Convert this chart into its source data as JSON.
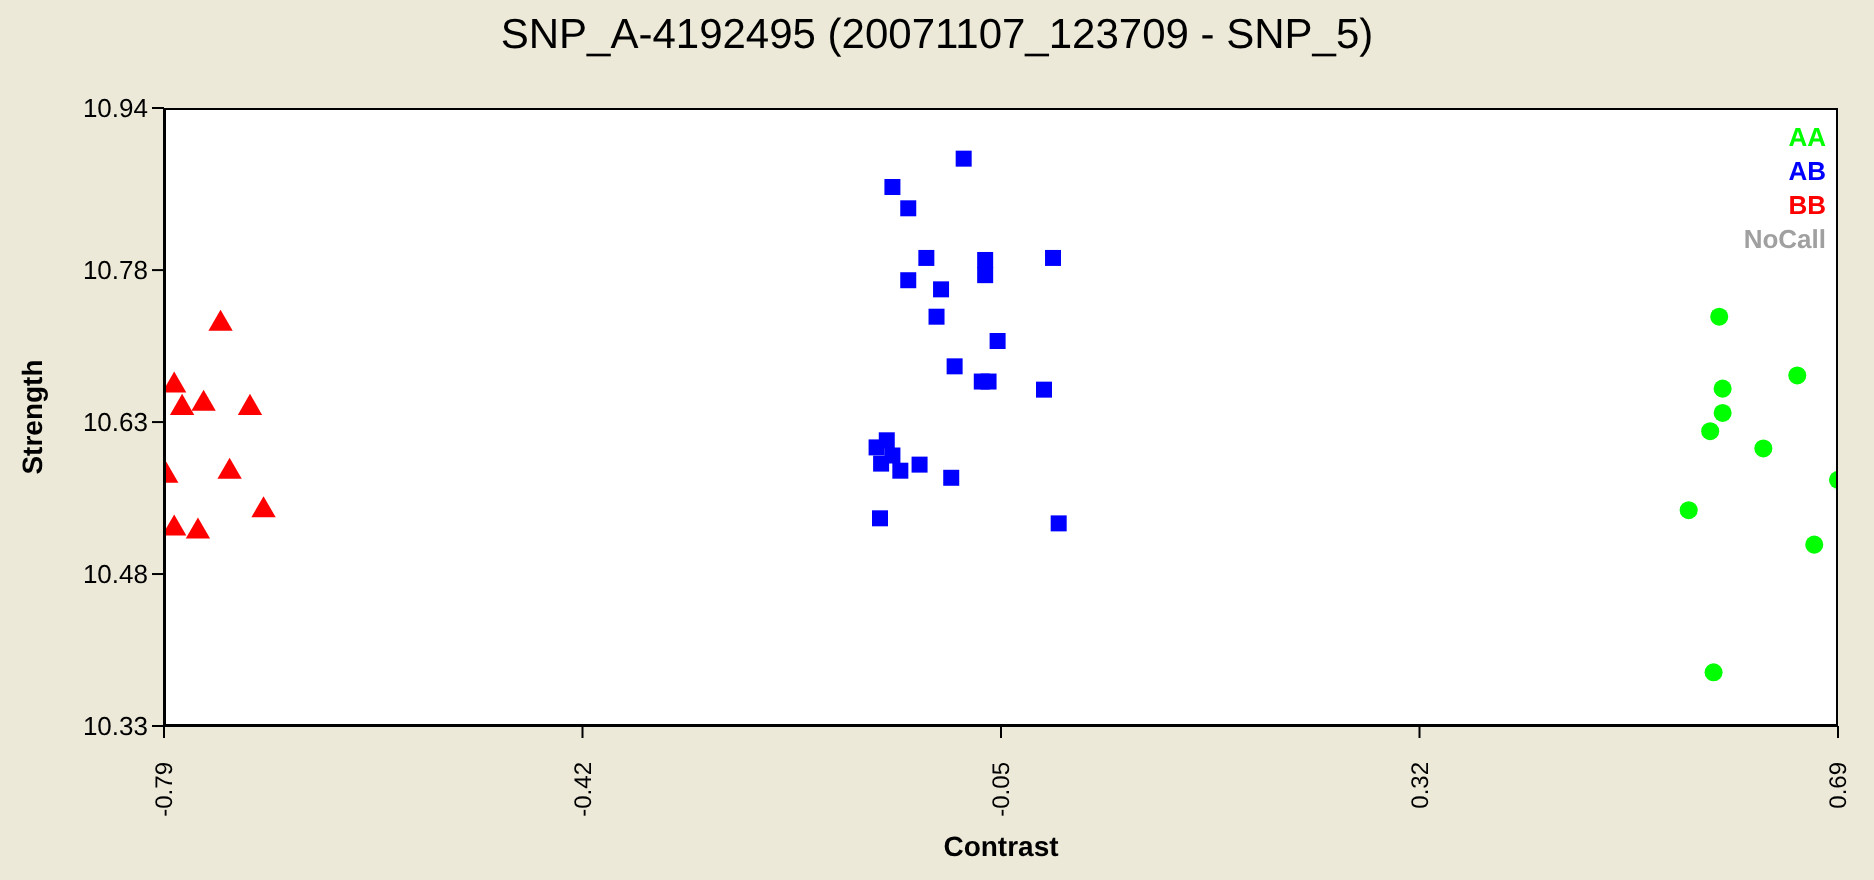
{
  "chart_data": {
    "type": "scatter",
    "title": "SNP_A-4192495 (20071107_123709 - SNP_5)",
    "xlabel": "Contrast",
    "ylabel": "Strength",
    "xlim": [
      -0.79,
      0.69
    ],
    "xticks": [
      -0.79,
      -0.42,
      -0.05,
      0.32,
      0.69
    ],
    "ylim": [
      10.33,
      10.94
    ],
    "yticks": [
      10.33,
      10.48,
      10.63,
      10.78,
      10.94
    ],
    "grid": false,
    "legend": "top right",
    "series": [
      {
        "name": "AA",
        "color": "#00ff00",
        "marker": "circle",
        "x": [
          0.585,
          0.654,
          0.588,
          0.588,
          0.577,
          0.624,
          0.69,
          0.558,
          0.669,
          0.58
        ],
        "values": [
          10.734,
          10.676,
          10.663,
          10.639,
          10.621,
          10.604,
          10.573,
          10.543,
          10.509,
          10.383
        ]
      },
      {
        "name": "AB",
        "color": "#0000ff",
        "marker": "square",
        "x": [
          -0.083,
          -0.146,
          -0.132,
          -0.116,
          -0.132,
          -0.064,
          -0.064,
          -0.004,
          -0.103,
          -0.107,
          -0.053,
          -0.091,
          -0.061,
          -0.067,
          -0.012,
          -0.151,
          -0.16,
          -0.156,
          -0.139,
          -0.122,
          -0.146,
          -0.094,
          -0.157,
          0.001
        ],
        "values": [
          10.89,
          10.862,
          10.841,
          10.792,
          10.77,
          10.79,
          10.775,
          10.792,
          10.761,
          10.734,
          10.71,
          10.685,
          10.67,
          10.67,
          10.662,
          10.612,
          10.605,
          10.589,
          10.582,
          10.588,
          10.597,
          10.575,
          10.535,
          10.53
        ]
      },
      {
        "name": "BB",
        "color": "#ff0000",
        "marker": "triangle",
        "x": [
          -0.74,
          -0.781,
          -0.774,
          -0.755,
          -0.714,
          -0.788,
          -0.732,
          -0.781,
          -0.76,
          -0.702
        ],
        "values": [
          10.727,
          10.666,
          10.644,
          10.648,
          10.644,
          10.577,
          10.581,
          10.525,
          10.522,
          10.543
        ]
      },
      {
        "name": "NoCall",
        "color": "#a0a0a0",
        "marker": "circle"
      }
    ]
  }
}
